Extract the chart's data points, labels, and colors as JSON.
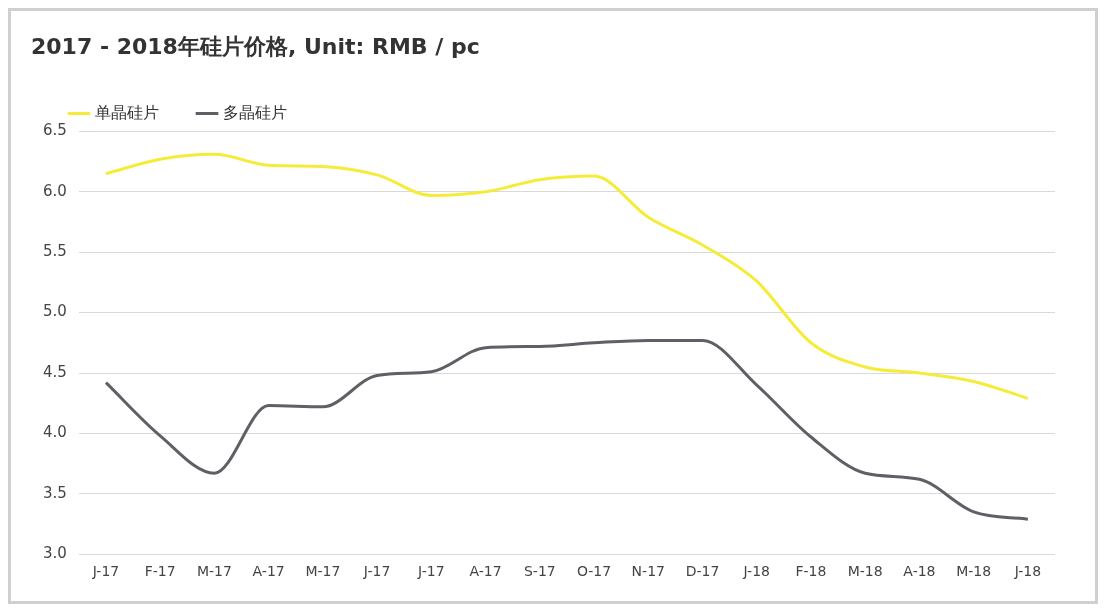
{
  "chart_data": {
    "type": "line",
    "title": "2017 - 2018年硅片价格, Unit: RMB / pc",
    "categories": [
      "J-17",
      "F-17",
      "M-17",
      "A-17",
      "M-17",
      "J-17",
      "J-17",
      "A-17",
      "S-17",
      "O-17",
      "N-17",
      "D-17",
      "J-18",
      "F-18",
      "M-18",
      "A-18",
      "M-18",
      "J-18"
    ],
    "series": [
      {
        "name": "单晶硅片",
        "color": "#f5ec3a",
        "values": [
          6.15,
          6.27,
          6.31,
          6.22,
          6.21,
          6.14,
          5.97,
          6.0,
          6.1,
          6.13,
          5.79,
          5.56,
          5.26,
          4.75,
          4.55,
          4.5,
          4.43,
          4.29
        ]
      },
      {
        "name": "多晶硅片",
        "color": "#5f5f66",
        "values": [
          4.42,
          3.98,
          3.67,
          4.23,
          4.22,
          4.48,
          4.51,
          4.71,
          4.72,
          4.75,
          4.77,
          4.77,
          4.4,
          3.97,
          3.67,
          3.62,
          3.35,
          3.29
        ]
      }
    ],
    "ylim": [
      3.0,
      6.5
    ],
    "yticks": [
      {
        "value": 3.0,
        "label": "3.0"
      },
      {
        "value": 3.5,
        "label": "3.5"
      },
      {
        "value": 4.0,
        "label": "4.0"
      },
      {
        "value": 4.5,
        "label": "4.5"
      },
      {
        "value": 5.0,
        "label": "5.0"
      },
      {
        "value": 5.5,
        "label": "5.5"
      },
      {
        "value": 6.0,
        "label": "6.0"
      },
      {
        "value": 6.5,
        "label": "6.5"
      }
    ],
    "grid": "y",
    "legend": "top left",
    "marker": "none",
    "line_style": "solid"
  }
}
